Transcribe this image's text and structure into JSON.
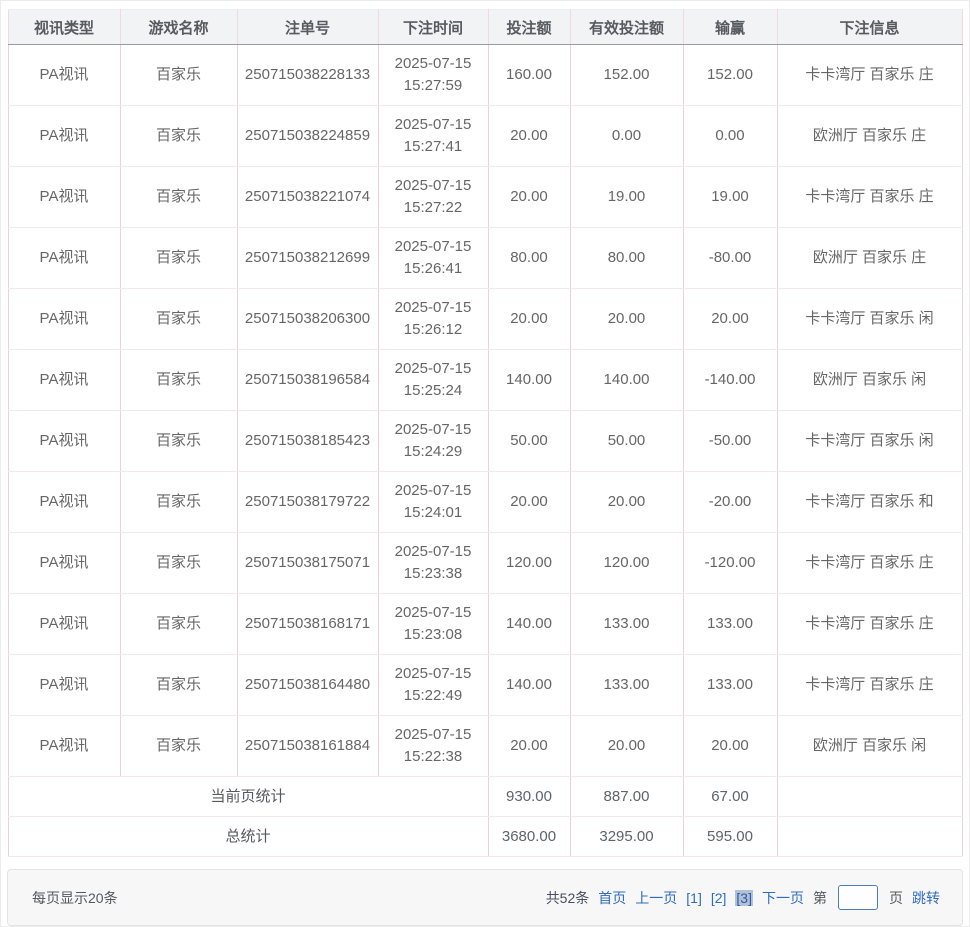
{
  "table": {
    "headers": [
      "视讯类型",
      "游戏名称",
      "注单号",
      "下注时间",
      "投注额",
      "有效投注额",
      "输赢",
      "下注信息"
    ],
    "rows": [
      {
        "type": "PA视讯",
        "game": "百家乐",
        "bet_no": "250715038228133",
        "time": "2025-07-15 15:27:59",
        "amount": "160.00",
        "valid": "152.00",
        "winloss": "152.00",
        "info": "卡卡湾厅 百家乐 庄"
      },
      {
        "type": "PA视讯",
        "game": "百家乐",
        "bet_no": "250715038224859",
        "time": "2025-07-15 15:27:41",
        "amount": "20.00",
        "valid": "0.00",
        "winloss": "0.00",
        "info": "欧洲厅 百家乐 庄"
      },
      {
        "type": "PA视讯",
        "game": "百家乐",
        "bet_no": "250715038221074",
        "time": "2025-07-15 15:27:22",
        "amount": "20.00",
        "valid": "19.00",
        "winloss": "19.00",
        "info": "卡卡湾厅 百家乐 庄"
      },
      {
        "type": "PA视讯",
        "game": "百家乐",
        "bet_no": "250715038212699",
        "time": "2025-07-15 15:26:41",
        "amount": "80.00",
        "valid": "80.00",
        "winloss": "-80.00",
        "info": "欧洲厅 百家乐 庄"
      },
      {
        "type": "PA视讯",
        "game": "百家乐",
        "bet_no": "250715038206300",
        "time": "2025-07-15 15:26:12",
        "amount": "20.00",
        "valid": "20.00",
        "winloss": "20.00",
        "info": "卡卡湾厅 百家乐 闲"
      },
      {
        "type": "PA视讯",
        "game": "百家乐",
        "bet_no": "250715038196584",
        "time": "2025-07-15 15:25:24",
        "amount": "140.00",
        "valid": "140.00",
        "winloss": "-140.00",
        "info": "欧洲厅 百家乐 闲"
      },
      {
        "type": "PA视讯",
        "game": "百家乐",
        "bet_no": "250715038185423",
        "time": "2025-07-15 15:24:29",
        "amount": "50.00",
        "valid": "50.00",
        "winloss": "-50.00",
        "info": "卡卡湾厅 百家乐 闲"
      },
      {
        "type": "PA视讯",
        "game": "百家乐",
        "bet_no": "250715038179722",
        "time": "2025-07-15 15:24:01",
        "amount": "20.00",
        "valid": "20.00",
        "winloss": "-20.00",
        "info": "卡卡湾厅 百家乐 和"
      },
      {
        "type": "PA视讯",
        "game": "百家乐",
        "bet_no": "250715038175071",
        "time": "2025-07-15 15:23:38",
        "amount": "120.00",
        "valid": "120.00",
        "winloss": "-120.00",
        "info": "卡卡湾厅 百家乐 庄"
      },
      {
        "type": "PA视讯",
        "game": "百家乐",
        "bet_no": "250715038168171",
        "time": "2025-07-15 15:23:08",
        "amount": "140.00",
        "valid": "133.00",
        "winloss": "133.00",
        "info": "卡卡湾厅 百家乐 庄"
      },
      {
        "type": "PA视讯",
        "game": "百家乐",
        "bet_no": "250715038164480",
        "time": "2025-07-15 15:22:49",
        "amount": "140.00",
        "valid": "133.00",
        "winloss": "133.00",
        "info": "卡卡湾厅 百家乐 庄"
      },
      {
        "type": "PA视讯",
        "game": "百家乐",
        "bet_no": "250715038161884",
        "time": "2025-07-15 15:22:38",
        "amount": "20.00",
        "valid": "20.00",
        "winloss": "20.00",
        "info": "欧洲厅 百家乐 闲"
      }
    ],
    "page_stats": {
      "label": "当前页统计",
      "amount": "930.00",
      "valid": "887.00",
      "winloss": "67.00",
      "info": ""
    },
    "total_stats": {
      "label": "总统计",
      "amount": "3680.00",
      "valid": "3295.00",
      "winloss": "595.00",
      "info": ""
    }
  },
  "footer": {
    "per_page": "每页显示20条",
    "total_count": "共52条",
    "first_page": "首页",
    "prev_page": "上一页",
    "pages": [
      "[1]",
      "[2]",
      "[3]"
    ],
    "current_page": "[3]",
    "next_page": "下一页",
    "jump_prefix": "第",
    "jump_suffix": "页",
    "jump_button": "跳转",
    "page_input_value": ""
  },
  "colors": {
    "link_blue": "#2f6cc1",
    "current_page_highlight": "#b3c1d6",
    "header_bg": "#f1f3f5",
    "cell_border_vertical": "#e9d2de",
    "cell_border_horizontal": "#f5e7ed",
    "header_bottom_border": "#9c9c9c",
    "footer_bg": "#f7f7f7",
    "text_gray": "#666666"
  }
}
